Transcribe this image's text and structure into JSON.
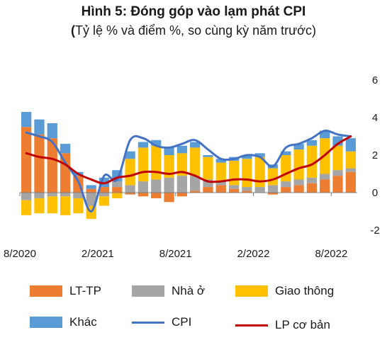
{
  "title": "Hình 5: Đóng góp vào lạm phát CPI",
  "subtitle_main": "Tỷ lệ % và điểm %, so cùng kỳ năm trước",
  "subtitle_open": "(",
  "subtitle_close": ")",
  "colors": {
    "lt_tp": "#ED7D31",
    "nha_o": "#A5A5A5",
    "giao_thong": "#FFC000",
    "khac": "#5B9BD5",
    "cpi": "#4472C4",
    "lp_co_ban": "#C00000",
    "axis": "#7f7f7f"
  },
  "chart_data": {
    "type": "bar",
    "stacked": true,
    "x_tick_labels": [
      "8/2020",
      "2/2021",
      "8/2021",
      "2/2022",
      "8/2022"
    ],
    "x_tick_indices": [
      0,
      6,
      12,
      18,
      24
    ],
    "ylim": [
      -2,
      6
    ],
    "y_ticks": [
      -2,
      0,
      2,
      4,
      6
    ],
    "y_axis_side": "right",
    "grid": false,
    "legend_position": "bottom",
    "series": [
      {
        "name": "LT-TP",
        "kind": "bar",
        "values": [
          3.5,
          3.1,
          2.9,
          2.1,
          0.9,
          0.2,
          0.3,
          0.3,
          -0.1,
          -0.2,
          -0.3,
          -0.5,
          -0.2,
          0.1,
          0.3,
          0.4,
          0.2,
          0.1,
          0.0,
          -0.1,
          0.3,
          0.4,
          0.5,
          0.7,
          0.9,
          1.1
        ]
      },
      {
        "name": "Nhà ở",
        "kind": "bar",
        "values": [
          -0.4,
          -0.3,
          -0.2,
          -0.2,
          -0.3,
          -0.7,
          -0.2,
          0.3,
          0.4,
          0.6,
          0.7,
          0.8,
          0.9,
          0.8,
          0.4,
          0.2,
          0.2,
          0.2,
          0.3,
          0.4,
          0.3,
          0.3,
          0.3,
          0.3,
          0.3,
          0.2
        ]
      },
      {
        "name": "Giao thông",
        "kind": "bar",
        "values": [
          -0.8,
          -0.8,
          -0.9,
          -1.0,
          -0.8,
          -0.7,
          -0.5,
          -0.3,
          1.4,
          1.8,
          1.8,
          1.2,
          1.2,
          1.5,
          1.2,
          1.0,
          1.3,
          1.5,
          1.6,
          0.9,
          1.4,
          1.6,
          1.7,
          1.9,
          1.3,
          0.9
        ]
      },
      {
        "name": "Khác",
        "kind": "bar",
        "values": [
          0.8,
          0.8,
          0.8,
          0.5,
          0.2,
          0.2,
          0.5,
          0.6,
          0.4,
          0.3,
          0.3,
          0.4,
          0.4,
          0.3,
          0.1,
          0.2,
          0.2,
          0.2,
          0.2,
          0.2,
          0.2,
          0.3,
          0.3,
          0.4,
          0.5,
          0.7
        ]
      },
      {
        "name": "CPI",
        "kind": "line",
        "values": [
          3.2,
          3.0,
          2.7,
          1.6,
          0.6,
          -1.0,
          0.9,
          0.7,
          2.8,
          2.9,
          2.5,
          2.4,
          2.6,
          2.8,
          2.3,
          1.8,
          1.8,
          2.0,
          1.9,
          1.4,
          2.4,
          2.6,
          2.9,
          3.3,
          3.1,
          3.0
        ]
      },
      {
        "name": "LP cơ bản",
        "kind": "line",
        "values": [
          2.1,
          1.9,
          1.8,
          1.5,
          1.0,
          0.7,
          0.5,
          0.8,
          0.9,
          1.1,
          1.1,
          1.0,
          1.1,
          0.9,
          0.6,
          0.6,
          0.7,
          0.7,
          0.6,
          0.7,
          1.0,
          1.3,
          1.5,
          2.0,
          2.6,
          3.0
        ]
      }
    ]
  }
}
